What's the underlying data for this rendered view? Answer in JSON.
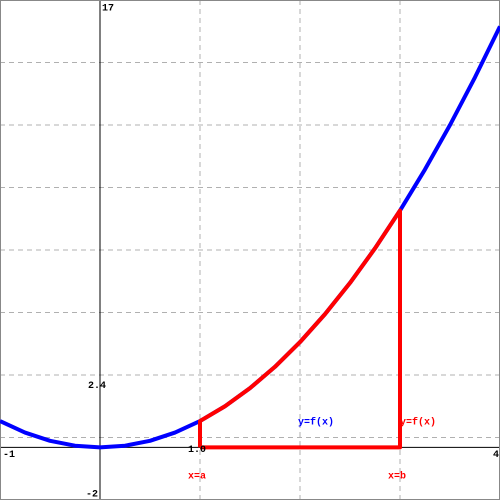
{
  "chart_data": {
    "type": "line",
    "xlim": [
      -1,
      4
    ],
    "ylim": [
      -2,
      17
    ],
    "xlim_labels": [
      "-1",
      "4"
    ],
    "ylim_labels": [
      "-2",
      "17"
    ],
    "xgrid": [
      1,
      2,
      3
    ],
    "ygrid": [
      0.375,
      2.75,
      5.125,
      7.5,
      9.875,
      12.25,
      14.625
    ],
    "x_step": {
      "value": 1,
      "label": "1.0"
    },
    "y_step": {
      "value": 2.375,
      "label": "2.4"
    },
    "series": [
      {
        "color": "#0000ff",
        "x": [
          -1,
          -0.75,
          -0.5,
          -0.25,
          0,
          0.25,
          0.5,
          0.75,
          1,
          1.25,
          1.5,
          1.75,
          2,
          2.25,
          2.5,
          2.75,
          3,
          3.25,
          3.5,
          3.75,
          4
        ],
        "values": [
          1,
          0.5625,
          0.25,
          0.0625,
          0,
          0.0625,
          0.25,
          0.5625,
          1,
          1.5625,
          2.25,
          3.0625,
          4,
          5.0625,
          6.25,
          7.5625,
          9,
          10.5625,
          12.25,
          14.0625,
          16
        ]
      },
      {
        "color": "#ff0000",
        "x": [
          1,
          1,
          1.25,
          1.5,
          1.75,
          2,
          2.25,
          2.5,
          2.75,
          3,
          3,
          1
        ],
        "values": [
          0,
          1,
          1.5625,
          2.25,
          3.0625,
          4,
          5.0625,
          6.25,
          7.5625,
          9,
          0,
          0
        ]
      }
    ],
    "annotations": [
      {
        "text": "y=f(x)",
        "color": "#0000ff"
      },
      {
        "text": "y=f(x)",
        "color": "#ff0000"
      },
      {
        "text": "x=a",
        "color": "#ff0000"
      },
      {
        "text": "x=b",
        "color": "#ff0000"
      }
    ]
  }
}
